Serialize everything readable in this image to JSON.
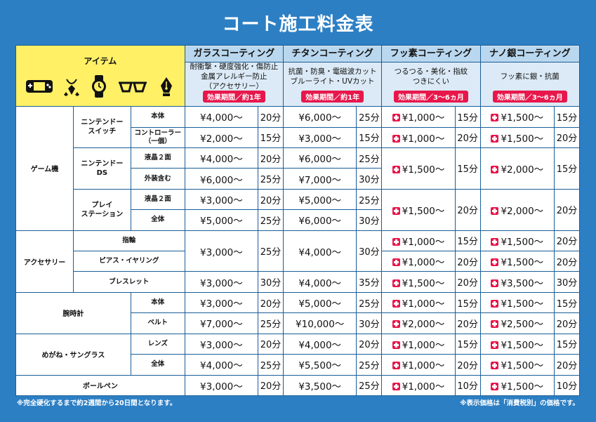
{
  "title": "コート施工料金表",
  "header": {
    "item_label": "アイテム",
    "coatings": [
      {
        "name": "ガラスコーティング",
        "desc": [
          "耐衝撃・硬度強化・傷防止",
          "金属アレルギー防止",
          "（アクセサリー）"
        ],
        "effect": "効果期間／約1年"
      },
      {
        "name": "チタンコーティング",
        "desc": [
          "抗菌・防臭・電磁波カット",
          "ブルーライト・UVカット"
        ],
        "effect": "効果期間／約1年"
      },
      {
        "name": "フッ素コーティング",
        "desc": [
          "つるつる・美化・指紋",
          "つきにくい"
        ],
        "effect": "効果期間／3〜6ヵ月"
      },
      {
        "name": "ナノ銀コーティング",
        "desc": [
          "フッ素に銀・抗菌"
        ],
        "effect": "効果期間／3〜6ヵ月"
      }
    ]
  },
  "categories": {
    "game": "ゲーム機",
    "accessory": "アクセサリー",
    "watch": "腕時計",
    "glasses": "めがね・サングラス",
    "pen": "ボールペン"
  },
  "subs": {
    "switch": "ニンテンドー\nスイッチ",
    "ds": "ニンテンドー\nDS",
    "ps": "プレイ\nステーション",
    "ring": "指輪",
    "pierce": "ピアス・イヤリング",
    "bracelet": "ブレスレット"
  },
  "parts": {
    "body": "本体",
    "controller": "コントローラー\n（一個）",
    "lcd2": "液晶２面",
    "exterior": "外装含む",
    "all": "全体",
    "belt": "ベルト",
    "lens": "レンズ"
  },
  "rows": {
    "sw_body": {
      "g": [
        "¥4,000〜",
        "20分"
      ],
      "t": [
        "¥6,000〜",
        "25分"
      ],
      "f": [
        "¥1,000〜",
        "15分"
      ],
      "n": [
        "¥1,500〜",
        "15分"
      ]
    },
    "sw_ctrl": {
      "g": [
        "¥2,000〜",
        "15分"
      ],
      "t": [
        "¥3,000〜",
        "15分"
      ],
      "f": [
        "¥1,000〜",
        "20分"
      ],
      "n": [
        "¥1,500〜",
        "20分"
      ]
    },
    "ds_lcd": {
      "g": [
        "¥4,000〜",
        "20分"
      ],
      "t": [
        "¥6,000〜",
        "25分"
      ]
    },
    "ds_ext": {
      "g": [
        "¥6,000〜",
        "25分"
      ],
      "t": [
        "¥7,000〜",
        "30分"
      ]
    },
    "ds_merged": {
      "f": [
        "¥1,500〜",
        "15分"
      ],
      "n": [
        "¥2,000〜",
        "15分"
      ]
    },
    "ps_lcd": {
      "g": [
        "¥3,000〜",
        "20分"
      ],
      "t": [
        "¥5,000〜",
        "25分"
      ]
    },
    "ps_all": {
      "g": [
        "¥5,000〜",
        "25分"
      ],
      "t": [
        "¥6,000〜",
        "30分"
      ]
    },
    "ps_merged": {
      "f": [
        "¥1,500〜",
        "20分"
      ],
      "n": [
        "¥2,000〜",
        "20分"
      ]
    },
    "ring_pierce": {
      "g": [
        "¥3,000〜",
        "25分"
      ],
      "t": [
        "¥4,000〜",
        "30分"
      ]
    },
    "ring": {
      "f": [
        "¥1,000〜",
        "15分"
      ],
      "n": [
        "¥1,500〜",
        "20分"
      ]
    },
    "pierce": {
      "f": [
        "¥1,000〜",
        "20分"
      ],
      "n": [
        "¥1,500〜",
        "20分"
      ]
    },
    "bracelet": {
      "g": [
        "¥3,000〜",
        "30分"
      ],
      "t": [
        "¥4,000〜",
        "35分"
      ],
      "f": [
        "¥1,500〜",
        "20分"
      ],
      "n": [
        "¥3,500〜",
        "30分"
      ]
    },
    "w_body": {
      "g": [
        "¥3,000〜",
        "20分"
      ],
      "t": [
        "¥5,000〜",
        "25分"
      ],
      "f": [
        "¥1,000〜",
        "15分"
      ],
      "n": [
        "¥1,500〜",
        "15分"
      ]
    },
    "w_belt": {
      "g": [
        "¥7,000〜",
        "25分"
      ],
      "t": [
        "¥10,000〜",
        "30分"
      ],
      "f": [
        "¥2,000〜",
        "20分"
      ],
      "n": [
        "¥2,500〜",
        "20分"
      ]
    },
    "gl_lens": {
      "g": [
        "¥3,000〜",
        "20分"
      ],
      "t": [
        "¥4,000〜",
        "20分"
      ],
      "f": [
        "¥1,000〜",
        "15分"
      ],
      "n": [
        "¥1,500〜",
        "15分"
      ]
    },
    "gl_all": {
      "g": [
        "¥4,000〜",
        "25分"
      ],
      "t": [
        "¥5,500〜",
        "25分"
      ],
      "f": [
        "¥1,000〜",
        "20分"
      ],
      "n": [
        "¥1,500〜",
        "20分"
      ]
    },
    "pen": {
      "g": [
        "¥3,000〜",
        "20分"
      ],
      "t": [
        "¥3,500〜",
        "25分"
      ],
      "f": [
        "¥1,000〜",
        "10分"
      ],
      "n": [
        "¥1,500〜",
        "10分"
      ]
    }
  },
  "notes": {
    "left": "※完全硬化するまで約2週間から20日間となります。",
    "right": "※表示価格は「消費税別」の価格です。"
  },
  "icons": [
    "game-console-icon",
    "necklace-icon",
    "wristwatch-icon",
    "glasses-icon",
    "pen-nib-icon"
  ],
  "colors": {
    "background": "#2d7fc4",
    "item_header": "#fff066",
    "effect_badge": "#e8174b"
  }
}
